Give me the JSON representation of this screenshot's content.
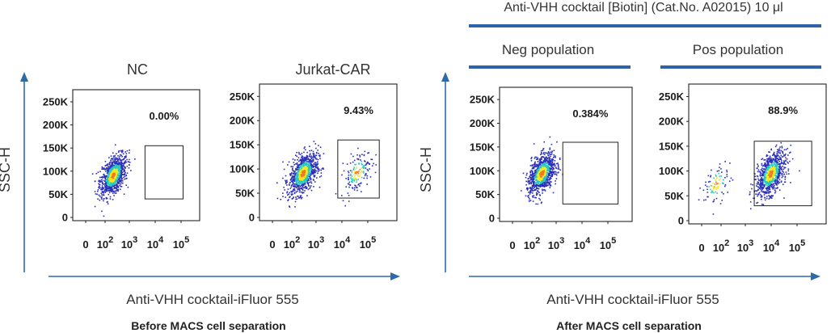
{
  "header": {
    "reagent": "Anti-VHH cocktail [Biotin] (Cat.No. A02015)  10 μl",
    "neg_population": "Neg population",
    "pos_population": "Pos population"
  },
  "groups": [
    {
      "ylabel": "SSC-H",
      "xlabel": "Anti-VHH cocktail-iFluor 555",
      "caption": "Before MACS cell separation"
    },
    {
      "ylabel": "SSC-H",
      "xlabel": "Anti-VHH cocktail-iFluor 555",
      "caption": "After MACS cell separation"
    }
  ],
  "colors": {
    "axis_arrow": "#2e6aa8",
    "header_bar": "#2e62ab",
    "density_low": "#2b2fb8",
    "density_mid": "#27c9c0",
    "density_high": "#f2e81c",
    "density_peak": "#f07a1e"
  },
  "chart_data": [
    {
      "type": "scatter",
      "subtype": "flow-cytometry-density",
      "title": "NC",
      "xscale": "log",
      "x_tick_labels": [
        "0",
        "10^2",
        "10^3",
        "10^4",
        "10^5"
      ],
      "y_tick_labels": [
        "0",
        "50K",
        "100K",
        "150K",
        "200K",
        "250K"
      ],
      "ylim": [
        0,
        262144
      ],
      "populations": [
        {
          "x_center_log": 2.8,
          "y_center": 92000,
          "n": 950
        }
      ],
      "gate": {
        "x_range_log": [
          3.9,
          5.2
        ],
        "y_range": [
          40000,
          155000
        ],
        "percent": "0.00%"
      }
    },
    {
      "type": "scatter",
      "subtype": "flow-cytometry-density",
      "title": "Jurkat-CAR",
      "xscale": "log",
      "x_tick_labels": [
        "0",
        "10^2",
        "10^3",
        "10^4",
        "10^5"
      ],
      "y_tick_labels": [
        "0",
        "50K",
        "100K",
        "150K",
        "200K",
        "250K"
      ],
      "ylim": [
        0,
        262144
      ],
      "populations": [
        {
          "x_center_log": 2.8,
          "y_center": 92000,
          "n": 900
        },
        {
          "x_center_log": 4.5,
          "y_center": 95000,
          "n": 160
        }
      ],
      "gate": {
        "x_range_log": [
          3.9,
          5.2
        ],
        "y_range": [
          40000,
          160000
        ],
        "percent": "9.43%"
      }
    },
    {
      "type": "scatter",
      "subtype": "flow-cytometry-density",
      "title": "",
      "xscale": "log",
      "x_tick_labels": [
        "0",
        "10^2",
        "10^3",
        "10^4",
        "10^5"
      ],
      "y_tick_labels": [
        "0",
        "50K",
        "100K",
        "150K",
        "200K",
        "250K"
      ],
      "ylim": [
        0,
        262144
      ],
      "populations": [
        {
          "x_center_log": 2.8,
          "y_center": 95000,
          "n": 950
        }
      ],
      "gate": {
        "x_range_log": [
          3.5,
          5.3
        ],
        "y_range": [
          30000,
          160000
        ],
        "percent": "0.384%"
      }
    },
    {
      "type": "scatter",
      "subtype": "flow-cytometry-density",
      "title": "",
      "xscale": "log",
      "x_tick_labels": [
        "0",
        "10^2",
        "10^3",
        "10^4",
        "10^5"
      ],
      "y_tick_labels": [
        "0",
        "50K",
        "100K",
        "150K",
        "200K",
        "250K"
      ],
      "ylim": [
        0,
        262144
      ],
      "populations": [
        {
          "x_center_log": 4.0,
          "y_center": 95000,
          "n": 900
        },
        {
          "x_center_log": 2.3,
          "y_center": 75000,
          "n": 90
        }
      ],
      "gate": {
        "x_range_log": [
          3.5,
          5.3
        ],
        "y_range": [
          30000,
          160000
        ],
        "percent": "88.9%"
      }
    }
  ]
}
